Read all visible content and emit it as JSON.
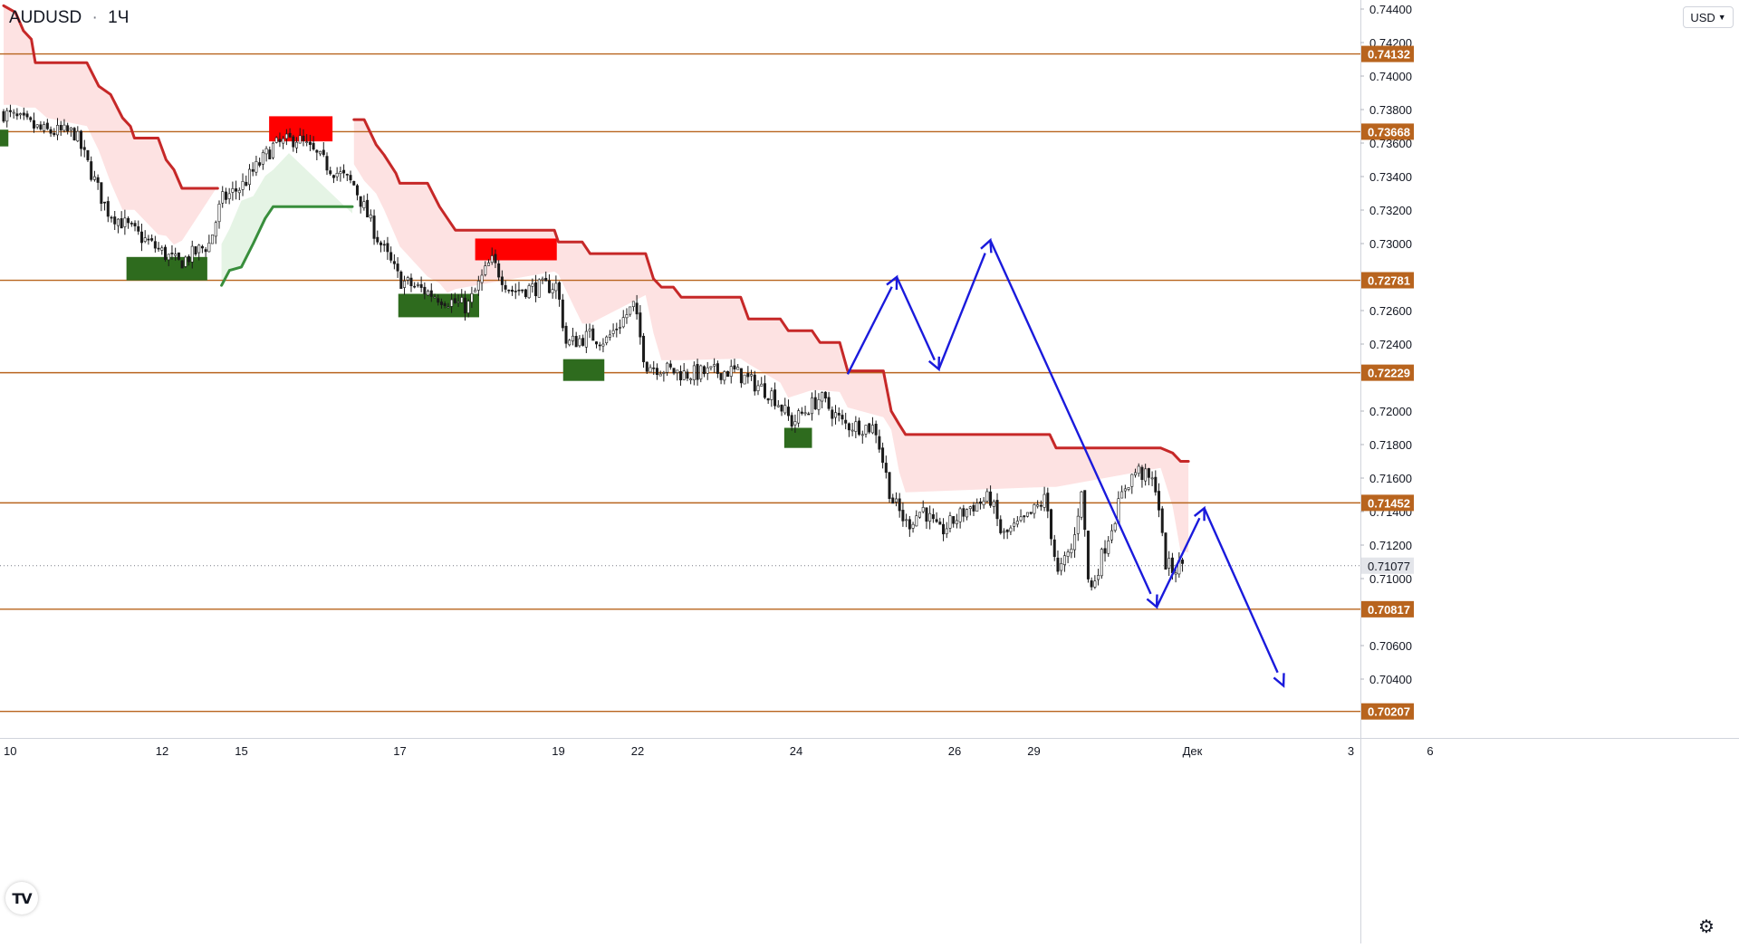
{
  "header": {
    "symbol": "AUDUSD",
    "separator": "·",
    "interval": "1Ч"
  },
  "currency_button": {
    "label": "USD",
    "icon": "chevron-down-icon"
  },
  "logo": {
    "text": "TV",
    "icon": "tradingview-logo-icon"
  },
  "settings": {
    "icon": "gear-icon"
  },
  "colors": {
    "level_line": "#b8641e",
    "level_tag_bg": "#b8641e",
    "trail_red": "#c62828",
    "trail_green": "#388e3c",
    "fill_red": "#fde2e2",
    "fill_green": "#e5f4e5",
    "supply_zone": "#ff0000",
    "demand_zone": "#2e6b1e",
    "projection": "#1a1adc",
    "candle": "#1a1a1a"
  },
  "chart_data": {
    "type": "candlestick",
    "symbol": "AUDUSD",
    "interval": "1Ч",
    "ylim": [
      0.7,
      0.7444
    ],
    "y_ticks": [
      "0.74400",
      "0.74200",
      "0.74000",
      "0.73800",
      "0.73600",
      "0.73400",
      "0.73200",
      "0.73000",
      "0.72600",
      "0.72400",
      "0.72000",
      "0.71800",
      "0.71600",
      "0.71400",
      "0.71200",
      "0.71000",
      "0.70600",
      "0.70400"
    ],
    "x_ticks": [
      {
        "label": "10",
        "x": 0.0
      },
      {
        "label": "12",
        "x": 2.0
      },
      {
        "label": "15",
        "x": 3.0
      },
      {
        "label": "17",
        "x": 5.0
      },
      {
        "label": "19",
        "x": 7.0
      },
      {
        "label": "22",
        "x": 8.0
      },
      {
        "label": "24",
        "x": 10.0
      },
      {
        "label": "26",
        "x": 12.0
      },
      {
        "label": "29",
        "x": 13.0
      },
      {
        "label": "Дек",
        "x": 15.0
      },
      {
        "label": "3",
        "x": 17.0
      },
      {
        "label": "6",
        "x": 18.0
      }
    ],
    "levels": [
      {
        "value": 0.74132,
        "label": "0.74132"
      },
      {
        "value": 0.73668,
        "label": "0.73668"
      },
      {
        "value": 0.72781,
        "label": "0.72781"
      },
      {
        "value": 0.72229,
        "label": "0.72229"
      },
      {
        "value": 0.71452,
        "label": "0.71452"
      },
      {
        "value": 0.70817,
        "label": "0.70817"
      },
      {
        "value": 0.70207,
        "label": "0.70207"
      }
    ],
    "current_price": {
      "value": 0.71077,
      "label": "0.71077"
    },
    "callouts": [
      {
        "text": "0.73668",
        "value": 0.73668,
        "x": 17.6,
        "color": "#22dd22",
        "marker": "x"
      },
      {
        "text": "0.72781",
        "value": 0.72781,
        "x": 17.6,
        "color": "#ff2222"
      },
      {
        "text": "0.70817",
        "value": 0.70817,
        "x": 17.6,
        "color": "#000000"
      },
      {
        "text": "0.70207",
        "value": 0.70207,
        "x": 17.65,
        "color": "#000000"
      }
    ],
    "cancel_marker": {
      "x": 17.47,
      "y": 0.7365
    },
    "trail_red": [
      {
        "x": 0.0,
        "y": 0.7442
      },
      {
        "x": 0.15,
        "y": 0.7438
      },
      {
        "x": 0.25,
        "y": 0.7427
      },
      {
        "x": 0.35,
        "y": 0.7422
      },
      {
        "x": 0.4,
        "y": 0.7408
      },
      {
        "x": 0.55,
        "y": 0.7408
      },
      {
        "x": 1.05,
        "y": 0.7408
      },
      {
        "x": 1.2,
        "y": 0.7394
      },
      {
        "x": 1.35,
        "y": 0.7389
      },
      {
        "x": 1.5,
        "y": 0.7375
      },
      {
        "x": 1.6,
        "y": 0.737
      },
      {
        "x": 1.65,
        "y": 0.7363
      },
      {
        "x": 1.95,
        "y": 0.7363
      },
      {
        "x": 2.05,
        "y": 0.735
      },
      {
        "x": 2.15,
        "y": 0.7344
      },
      {
        "x": 2.25,
        "y": 0.7333
      },
      {
        "x": 2.7,
        "y": 0.7333
      }
    ],
    "trail_green": [
      {
        "x": 2.75,
        "y": 0.7275
      },
      {
        "x": 2.85,
        "y": 0.7284
      },
      {
        "x": 3.0,
        "y": 0.7286
      },
      {
        "x": 3.15,
        "y": 0.73
      },
      {
        "x": 3.3,
        "y": 0.7315
      },
      {
        "x": 3.4,
        "y": 0.7322
      },
      {
        "x": 3.6,
        "y": 0.7322
      },
      {
        "x": 4.4,
        "y": 0.7322
      }
    ],
    "trail_red_2": [
      {
        "x": 4.42,
        "y": 0.7374
      },
      {
        "x": 4.55,
        "y": 0.7374
      },
      {
        "x": 4.7,
        "y": 0.7359
      },
      {
        "x": 4.8,
        "y": 0.7353
      },
      {
        "x": 4.95,
        "y": 0.7342
      },
      {
        "x": 5.0,
        "y": 0.7336
      },
      {
        "x": 5.35,
        "y": 0.7336
      },
      {
        "x": 5.5,
        "y": 0.7322
      },
      {
        "x": 5.6,
        "y": 0.7315
      },
      {
        "x": 5.7,
        "y": 0.7308
      },
      {
        "x": 6.95,
        "y": 0.7308
      },
      {
        "x": 7.0,
        "y": 0.7301
      },
      {
        "x": 7.3,
        "y": 0.7301
      },
      {
        "x": 7.4,
        "y": 0.7294
      },
      {
        "x": 8.1,
        "y": 0.7294
      },
      {
        "x": 8.2,
        "y": 0.7279
      },
      {
        "x": 8.3,
        "y": 0.7274
      },
      {
        "x": 8.45,
        "y": 0.7274
      },
      {
        "x": 8.55,
        "y": 0.7268
      },
      {
        "x": 9.3,
        "y": 0.7268
      },
      {
        "x": 9.4,
        "y": 0.7255
      },
      {
        "x": 9.8,
        "y": 0.7255
      },
      {
        "x": 9.9,
        "y": 0.7248
      },
      {
        "x": 10.2,
        "y": 0.7248
      },
      {
        "x": 10.3,
        "y": 0.7241
      },
      {
        "x": 10.55,
        "y": 0.7241
      },
      {
        "x": 10.65,
        "y": 0.7224
      },
      {
        "x": 11.1,
        "y": 0.7224
      },
      {
        "x": 11.2,
        "y": 0.72
      },
      {
        "x": 11.3,
        "y": 0.7192
      },
      {
        "x": 11.38,
        "y": 0.7186
      },
      {
        "x": 13.2,
        "y": 0.7186
      },
      {
        "x": 13.28,
        "y": 0.7178
      },
      {
        "x": 14.6,
        "y": 0.7178
      },
      {
        "x": 14.75,
        "y": 0.7175
      },
      {
        "x": 14.85,
        "y": 0.717
      },
      {
        "x": 14.95,
        "y": 0.717
      }
    ],
    "supply_zones": [
      {
        "x0": 3.35,
        "x1": 4.15,
        "y0": 0.7361,
        "y1": 0.7376
      },
      {
        "x0": 5.95,
        "x1": 6.98,
        "y0": 0.729,
        "y1": 0.7303
      }
    ],
    "demand_zones": [
      {
        "x0": -0.1,
        "x1": 0.06,
        "y0": 0.7358,
        "y1": 0.7368
      },
      {
        "x0": 1.55,
        "x1": 2.57,
        "y0": 0.7278,
        "y1": 0.7292
      },
      {
        "x0": 4.98,
        "x1": 6.0,
        "y0": 0.7256,
        "y1": 0.727
      },
      {
        "x0": 7.06,
        "x1": 7.58,
        "y0": 0.7218,
        "y1": 0.7231
      },
      {
        "x0": 9.85,
        "x1": 10.2,
        "y0": 0.7178,
        "y1": 0.719
      }
    ],
    "projection_1": [
      {
        "x": 10.65,
        "y": 0.7222
      },
      {
        "x": 11.27,
        "y": 0.728
      },
      {
        "x": 11.8,
        "y": 0.7225
      },
      {
        "x": 12.45,
        "y": 0.7302
      }
    ],
    "projection_2": [
      {
        "x": 12.45,
        "y": 0.7302
      },
      {
        "x": 14.55,
        "y": 0.7083
      },
      {
        "x": 15.15,
        "y": 0.7142
      },
      {
        "x": 16.15,
        "y": 0.7036
      }
    ],
    "candles_seed": 7,
    "candles_path": [
      {
        "x": 0.0,
        "y": 0.7378
      },
      {
        "x": 0.5,
        "y": 0.7367
      },
      {
        "x": 0.9,
        "y": 0.7366
      },
      {
        "x": 1.3,
        "y": 0.732
      },
      {
        "x": 1.7,
        "y": 0.7305
      },
      {
        "x": 2.2,
        "y": 0.7288
      },
      {
        "x": 2.6,
        "y": 0.73
      },
      {
        "x": 2.75,
        "y": 0.7326
      },
      {
        "x": 3.0,
        "y": 0.7334
      },
      {
        "x": 3.4,
        "y": 0.7358
      },
      {
        "x": 3.7,
        "y": 0.7363
      },
      {
        "x": 4.1,
        "y": 0.7346
      },
      {
        "x": 4.42,
        "y": 0.7335
      },
      {
        "x": 4.7,
        "y": 0.7305
      },
      {
        "x": 5.0,
        "y": 0.7278
      },
      {
        "x": 5.5,
        "y": 0.7268
      },
      {
        "x": 5.85,
        "y": 0.7262
      },
      {
        "x": 6.15,
        "y": 0.729
      },
      {
        "x": 6.4,
        "y": 0.7272
      },
      {
        "x": 6.98,
        "y": 0.7275
      },
      {
        "x": 7.1,
        "y": 0.724
      },
      {
        "x": 7.4,
        "y": 0.7245
      },
      {
        "x": 7.6,
        "y": 0.7242
      },
      {
        "x": 7.95,
        "y": 0.7263
      },
      {
        "x": 8.1,
        "y": 0.7228
      },
      {
        "x": 8.6,
        "y": 0.7222
      },
      {
        "x": 9.2,
        "y": 0.7224
      },
      {
        "x": 9.7,
        "y": 0.721
      },
      {
        "x": 9.95,
        "y": 0.7193
      },
      {
        "x": 10.3,
        "y": 0.7208
      },
      {
        "x": 10.6,
        "y": 0.7192
      },
      {
        "x": 11.0,
        "y": 0.719
      },
      {
        "x": 11.2,
        "y": 0.7148
      },
      {
        "x": 11.4,
        "y": 0.7132
      },
      {
        "x": 11.6,
        "y": 0.7142
      },
      {
        "x": 11.8,
        "y": 0.7127
      },
      {
        "x": 12.2,
        "y": 0.7143
      },
      {
        "x": 12.45,
        "y": 0.7148
      },
      {
        "x": 12.6,
        "y": 0.7125
      },
      {
        "x": 12.9,
        "y": 0.7135
      },
      {
        "x": 13.15,
        "y": 0.7148
      },
      {
        "x": 13.3,
        "y": 0.7102
      },
      {
        "x": 13.5,
        "y": 0.712
      },
      {
        "x": 13.6,
        "y": 0.7155
      },
      {
        "x": 13.7,
        "y": 0.709
      },
      {
        "x": 13.9,
        "y": 0.712
      },
      {
        "x": 14.15,
        "y": 0.7155
      },
      {
        "x": 14.3,
        "y": 0.7165
      },
      {
        "x": 14.55,
        "y": 0.7155
      },
      {
        "x": 14.65,
        "y": 0.711
      },
      {
        "x": 14.75,
        "y": 0.7105
      },
      {
        "x": 14.9,
        "y": 0.711
      }
    ]
  }
}
